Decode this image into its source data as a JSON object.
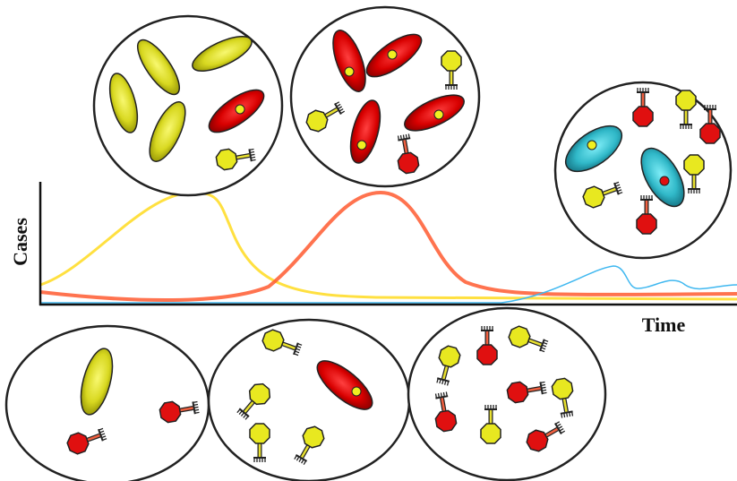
{
  "axes": {
    "y_label": "Cases",
    "x_label": "Time"
  }
}
